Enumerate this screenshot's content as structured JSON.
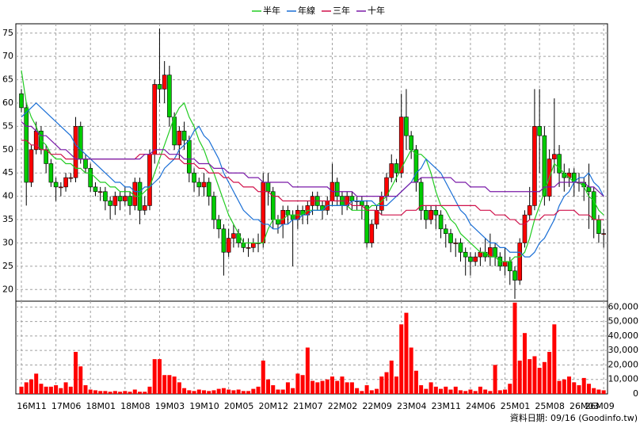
{
  "chart_data": {
    "type": "candlestick",
    "legend": "top",
    "grid": true,
    "x": [
      "16M11",
      null,
      null,
      null,
      null,
      null,
      null,
      "17M06",
      null,
      null,
      null,
      null,
      null,
      null,
      "18M01",
      null,
      null,
      null,
      null,
      null,
      null,
      "18M08",
      null,
      null,
      null,
      null,
      null,
      null,
      "19M03",
      null,
      null,
      null,
      null,
      null,
      null,
      "19M10",
      null,
      null,
      null,
      null,
      null,
      null,
      "20M05",
      null,
      null,
      null,
      null,
      null,
      null,
      "20M12",
      null,
      null,
      null,
      null,
      null,
      null,
      "21M07",
      null,
      null,
      null,
      null,
      null,
      null,
      "22M02",
      null,
      null,
      null,
      null,
      null,
      null,
      "22M09",
      null,
      null,
      null,
      null,
      null,
      null,
      "23M04",
      null,
      null,
      null,
      null,
      null,
      null,
      "23M11",
      null,
      null,
      null,
      null,
      null,
      null,
      "24M06",
      null,
      null,
      null,
      null,
      null,
      null,
      "25M01",
      null,
      null,
      null,
      null,
      null,
      null,
      "25M08",
      null,
      null,
      null,
      null,
      null,
      null,
      "26M03",
      null,
      null,
      null,
      null,
      null,
      "26M09"
    ],
    "open": [
      62,
      59,
      43,
      50,
      54,
      50,
      47,
      43,
      42,
      42,
      44,
      44,
      55,
      48,
      46,
      42,
      41,
      41,
      39,
      38,
      40,
      39,
      40,
      38,
      43,
      37,
      38,
      49,
      64,
      63,
      66,
      57,
      51,
      54,
      52,
      45,
      43,
      42,
      43,
      40,
      35,
      33,
      28,
      31,
      32,
      30,
      29,
      29,
      30,
      30,
      43,
      41,
      35,
      34,
      37,
      36,
      35,
      37,
      36,
      38,
      40,
      38,
      37,
      39,
      43,
      40,
      38,
      40,
      39,
      39,
      38,
      30,
      34,
      37,
      40,
      44,
      47,
      45,
      57,
      53,
      50,
      43,
      37,
      35,
      37,
      36,
      33,
      32,
      30,
      30,
      28,
      27,
      26,
      27,
      28,
      27,
      29,
      27,
      25,
      26,
      24,
      22,
      30,
      36,
      38,
      55,
      53,
      40,
      48,
      49,
      45,
      44,
      45,
      43,
      43,
      42,
      41,
      35,
      32
    ],
    "high": [
      63,
      60,
      51,
      56,
      55,
      51,
      48,
      44,
      43,
      45,
      45,
      57,
      56,
      49,
      47,
      43,
      42,
      42,
      40,
      41,
      41,
      42,
      41,
      44,
      44,
      40,
      50,
      65,
      76,
      69,
      68,
      58,
      55,
      56,
      53,
      46,
      44,
      45,
      44,
      41,
      36,
      34,
      33,
      34,
      33,
      31,
      31,
      31,
      32,
      45,
      45,
      42,
      36,
      38,
      38,
      37,
      38,
      38,
      39,
      41,
      41,
      39,
      40,
      47,
      44,
      41,
      41,
      41,
      40,
      40,
      39,
      35,
      38,
      41,
      45,
      49,
      48,
      62,
      63,
      54,
      51,
      44,
      38,
      38,
      38,
      37,
      34,
      33,
      31,
      31,
      29,
      28,
      28,
      29,
      31,
      32,
      30,
      28,
      29,
      27,
      25,
      31,
      37,
      42,
      63,
      63,
      55,
      50,
      61,
      51,
      47,
      46,
      46,
      45,
      44,
      47,
      42,
      36,
      33
    ],
    "low": [
      58,
      38,
      42,
      49,
      49,
      45,
      42,
      39,
      40,
      41,
      43,
      43,
      47,
      45,
      41,
      40,
      39,
      37,
      35,
      36,
      37,
      38,
      36,
      37,
      34,
      36,
      37,
      47,
      60,
      60,
      55,
      50,
      48,
      50,
      43,
      41,
      40,
      40,
      38,
      33,
      31,
      23,
      27,
      29,
      29,
      28,
      27,
      28,
      28,
      29,
      38,
      33,
      32,
      31,
      34,
      25,
      33,
      34,
      34,
      36,
      37,
      35,
      36,
      38,
      38,
      36,
      37,
      37,
      37,
      35,
      29,
      29,
      33,
      36,
      39,
      43,
      43,
      44,
      50,
      48,
      41,
      35,
      33,
      34,
      33,
      31,
      29,
      28,
      27,
      26,
      23,
      23,
      25,
      25,
      26,
      25,
      25,
      24,
      23,
      21,
      18,
      21,
      29,
      35,
      37,
      45,
      38,
      39,
      45,
      42,
      41,
      42,
      40,
      41,
      39,
      33,
      31,
      30,
      29
    ],
    "close": [
      59,
      43,
      50,
      54,
      50,
      47,
      43,
      42,
      42,
      44,
      44,
      55,
      48,
      46,
      42,
      41,
      41,
      39,
      38,
      40,
      39,
      40,
      38,
      43,
      37,
      38,
      49,
      64,
      63,
      66,
      57,
      51,
      54,
      52,
      45,
      43,
      42,
      43,
      40,
      35,
      33,
      28,
      31,
      32,
      30,
      29,
      29,
      30,
      30,
      43,
      41,
      35,
      34,
      37,
      36,
      35,
      37,
      36,
      38,
      40,
      38,
      37,
      39,
      43,
      40,
      38,
      40,
      39,
      39,
      38,
      30,
      34,
      37,
      40,
      44,
      47,
      45,
      57,
      53,
      50,
      43,
      37,
      35,
      37,
      36,
      33,
      32,
      30,
      30,
      28,
      27,
      26,
      27,
      28,
      27,
      29,
      27,
      25,
      26,
      24,
      22,
      30,
      36,
      38,
      55,
      53,
      40,
      48,
      49,
      45,
      44,
      45,
      43,
      43,
      42,
      41,
      35,
      32,
      32
    ],
    "up_color": "#ff0000",
    "down_color": "#00cc00",
    "ylim": [
      17.5,
      77
    ],
    "yticks": [
      20,
      25,
      30,
      35,
      40,
      45,
      50,
      55,
      60,
      65,
      70,
      75
    ],
    "volume": {
      "color": "#ff0000",
      "axis": "y2",
      "values": [
        5000,
        8000,
        10000,
        14000,
        7000,
        5000,
        5000,
        6000,
        4000,
        8000,
        5000,
        29000,
        19000,
        6000,
        3000,
        2500,
        2000,
        2000,
        1500,
        2000,
        1500,
        2000,
        1500,
        3000,
        1500,
        1500,
        5000,
        24000,
        24000,
        13000,
        13000,
        12000,
        8000,
        4000,
        2500,
        2000,
        3000,
        2500,
        2000,
        2500,
        3500,
        4000,
        3000,
        2500,
        3000,
        2000,
        2000,
        3500,
        5000,
        23000,
        10000,
        6000,
        3000,
        3000,
        8000,
        4000,
        14000,
        13000,
        32000,
        9000,
        8000,
        9000,
        10000,
        12000,
        9000,
        12000,
        8000,
        8000,
        4000,
        2000,
        6000,
        2500,
        3500,
        12000,
        15000,
        23000,
        12000,
        48000,
        56000,
        32000,
        16000,
        6000,
        3500,
        8000,
        5000,
        3500,
        5000,
        3000,
        5000,
        2500,
        2000,
        3000,
        2000,
        5000,
        3000,
        2000,
        20000,
        2500,
        3000,
        7000,
        63000,
        23000,
        42000,
        24000,
        26000,
        18000,
        22000,
        29000,
        48000,
        9000,
        10000,
        12000,
        8000,
        6000,
        11000,
        7000,
        4000,
        3000,
        2500
      ]
    },
    "y2lim": [
      0,
      64000
    ],
    "y2ticks": [
      0,
      {
        "value": 10000,
        "label": "10,000"
      },
      {
        "value": 20000,
        "label": "20,000"
      },
      {
        "value": 30000,
        "label": "30,000"
      },
      {
        "value": 40000,
        "label": "40,000"
      },
      {
        "value": 50000,
        "label": "50,000"
      },
      {
        "value": 60000,
        "label": "60,000"
      }
    ],
    "series": [
      {
        "name": "半年",
        "color": "#22cc22",
        "values": [
          67,
          60,
          57,
          55,
          52,
          51,
          49,
          48,
          48,
          47,
          47,
          46,
          46,
          45,
          45,
          44,
          43,
          43,
          42,
          42,
          41,
          41,
          41,
          40,
          40,
          41,
          42,
          45,
          48,
          51,
          54,
          57,
          59,
          60,
          57,
          55,
          52,
          50,
          47,
          45,
          42,
          39,
          36,
          34,
          32,
          30,
          30,
          30,
          30,
          30,
          33,
          35,
          35,
          35,
          36,
          36,
          36,
          36,
          37,
          37,
          37,
          37,
          38,
          38,
          38,
          38,
          38,
          37,
          37,
          37,
          37,
          38,
          38,
          39,
          40,
          42,
          44,
          46,
          48,
          50,
          49,
          49,
          48,
          45,
          41,
          38,
          37,
          35,
          34,
          32,
          31,
          30,
          29,
          28,
          28,
          27,
          27,
          26,
          26,
          26,
          27,
          27,
          28,
          31,
          35,
          38,
          41,
          44,
          47,
          46,
          45,
          44,
          43,
          43,
          42,
          40,
          39,
          37,
          36
        ]
      },
      {
        "name": "年線",
        "color": "#1a6fd6",
        "values": [
          57,
          58,
          59,
          60,
          59,
          58,
          57,
          56,
          55,
          54,
          53,
          51,
          50,
          49,
          48,
          47,
          46,
          45,
          44,
          43,
          43,
          42,
          42,
          41,
          41,
          42,
          42,
          43,
          44,
          46,
          47,
          48,
          50,
          51,
          52,
          54,
          55,
          53,
          52,
          50,
          48,
          45,
          43,
          41,
          39,
          37,
          36,
          35,
          35,
          34,
          34,
          33,
          33,
          34,
          34,
          35,
          35,
          36,
          36,
          37,
          37,
          37,
          38,
          38,
          38,
          38,
          38,
          39,
          39,
          39,
          39,
          39,
          38,
          38,
          38,
          39,
          40,
          41,
          42,
          43,
          45,
          46,
          48,
          47,
          46,
          45,
          43,
          41,
          39,
          37,
          36,
          34,
          33,
          32,
          31,
          30,
          30,
          29,
          29,
          28,
          28,
          28,
          27,
          27,
          28,
          30,
          31,
          33,
          35,
          38,
          40,
          41,
          43,
          44,
          44,
          45,
          43,
          42,
          40
        ]
      },
      {
        "name": "三年",
        "color": "#d0104a",
        "values": [
          52,
          52,
          51,
          51,
          50,
          50,
          49,
          49,
          49,
          48,
          48,
          48,
          48,
          48,
          48,
          48,
          48,
          48,
          48,
          48,
          48,
          48,
          48,
          48,
          49,
          49,
          49,
          49,
          49,
          49,
          48,
          48,
          48,
          47,
          47,
          47,
          46,
          46,
          45,
          45,
          45,
          44,
          44,
          43,
          43,
          42,
          42,
          42,
          41,
          41,
          41,
          40,
          40,
          39,
          39,
          39,
          39,
          39,
          39,
          39,
          39,
          39,
          39,
          39,
          39,
          39,
          39,
          38,
          38,
          38,
          37,
          37,
          37,
          36,
          36,
          36,
          36,
          36,
          37,
          37,
          37,
          38,
          38,
          38,
          38,
          38,
          38,
          38,
          38,
          38,
          38,
          38,
          38,
          37,
          37,
          37,
          36,
          36,
          36,
          35,
          35,
          34,
          34,
          35,
          35,
          35,
          36,
          36,
          36,
          37,
          37,
          37,
          37,
          36,
          36,
          36,
          35,
          35,
          35
        ]
      },
      {
        "name": "十年",
        "color": "#7a1aa8",
        "values": [
          56,
          55,
          55,
          54,
          53,
          53,
          52,
          51,
          50,
          50,
          49,
          48,
          48,
          48,
          48,
          48,
          48,
          48,
          48,
          48,
          48,
          48,
          48,
          48,
          48,
          49,
          49,
          50,
          50,
          50,
          49,
          49,
          49,
          48,
          48,
          48,
          47,
          47,
          47,
          46,
          46,
          46,
          45,
          45,
          45,
          45,
          44,
          44,
          44,
          43,
          43,
          43,
          43,
          43,
          43,
          42,
          42,
          42,
          42,
          42,
          42,
          42,
          42,
          41,
          41,
          41,
          41,
          41,
          40,
          40,
          40,
          40,
          40,
          40,
          40,
          40,
          40,
          41,
          42,
          43,
          43,
          44,
          44,
          44,
          44,
          44,
          44,
          44,
          43,
          43,
          43,
          42,
          42,
          42,
          42,
          41,
          41,
          41,
          41,
          41,
          41,
          41,
          41,
          41,
          41,
          41,
          42,
          42,
          42,
          43,
          43,
          43,
          43,
          43,
          43,
          42,
          42,
          41,
          40
        ]
      }
    ],
    "annotation": "資料日期: 09/16 (Goodinfo.tw)"
  }
}
